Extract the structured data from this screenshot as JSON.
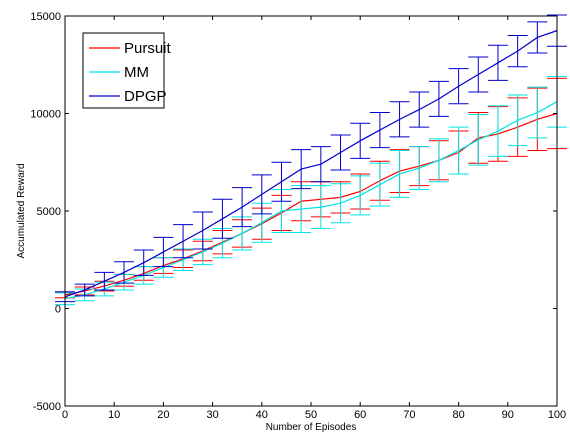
{
  "chart_data": {
    "type": "line",
    "xlabel": "Number of Episodes",
    "ylabel": "Accumulated Reward",
    "xlim": [
      0,
      100
    ],
    "ylim": [
      -5000,
      15000
    ],
    "x_ticks": [
      0,
      10,
      20,
      30,
      40,
      50,
      60,
      70,
      80,
      90,
      100
    ],
    "y_ticks": [
      -5000,
      0,
      5000,
      10000,
      15000
    ],
    "grid": false,
    "legend_position": "top-left",
    "x": [
      0,
      4,
      8,
      12,
      16,
      20,
      24,
      28,
      32,
      36,
      40,
      44,
      48,
      52,
      56,
      60,
      64,
      68,
      72,
      76,
      80,
      84,
      88,
      92,
      96,
      100
    ],
    "series": [
      {
        "name": "Pursuit",
        "color": "#ff0000",
        "values": [
          700,
          900,
          1150,
          1450,
          1800,
          2200,
          2550,
          2950,
          3400,
          3850,
          4350,
          4900,
          5500,
          5600,
          5700,
          6000,
          6550,
          7050,
          7300,
          7600,
          8000,
          8750,
          8950,
          9300,
          9700,
          10000
        ],
        "error": [
          150,
          200,
          250,
          300,
          350,
          400,
          450,
          500,
          600,
          700,
          800,
          900,
          1000,
          900,
          800,
          900,
          1000,
          1100,
          1000,
          1000,
          1100,
          1300,
          1400,
          1500,
          1600,
          1800
        ]
      },
      {
        "name": "MM",
        "color": "#00e5e5",
        "values": [
          500,
          700,
          1000,
          1350,
          1700,
          2100,
          2500,
          2900,
          3350,
          3850,
          4400,
          5000,
          5100,
          5200,
          5400,
          5800,
          6350,
          6900,
          7200,
          7600,
          8100,
          8650,
          9100,
          9650,
          10050,
          10600
        ],
        "error": [
          300,
          300,
          350,
          400,
          450,
          500,
          550,
          650,
          750,
          850,
          1000,
          1100,
          1200,
          1100,
          1000,
          1000,
          1100,
          1200,
          1100,
          1100,
          1200,
          1300,
          1300,
          1300,
          1300,
          1300
        ]
      },
      {
        "name": "DPGP",
        "color": "#0000cc",
        "values": [
          600,
          950,
          1400,
          1850,
          2350,
          2900,
          3450,
          4000,
          4600,
          5200,
          5850,
          6500,
          7150,
          7400,
          8000,
          8600,
          9150,
          9700,
          10200,
          10750,
          11400,
          12000,
          12600,
          13200,
          13900,
          14250
        ],
        "error": [
          250,
          300,
          450,
          550,
          650,
          750,
          850,
          950,
          1000,
          1000,
          1000,
          1000,
          1000,
          900,
          900,
          900,
          900,
          900,
          900,
          900,
          900,
          900,
          900,
          800,
          800,
          800
        ]
      }
    ]
  }
}
